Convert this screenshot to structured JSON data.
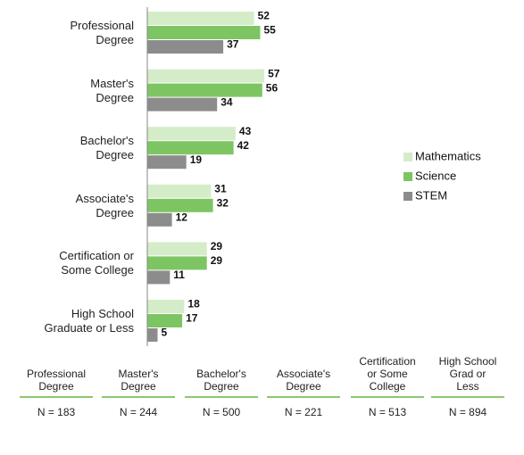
{
  "chart_data": {
    "type": "bar",
    "orientation": "horizontal",
    "categories": [
      "Professional\nDegree",
      "Master's\nDegree",
      "Bachelor's\nDegree",
      "Associate's\nDegree",
      "Certification or\nSome College",
      "High School\nGraduate or Less"
    ],
    "series": [
      {
        "name": "Mathematics",
        "color": "#d5ecc9",
        "values": [
          52,
          57,
          43,
          31,
          29,
          18
        ]
      },
      {
        "name": "Science",
        "color": "#7dc563",
        "values": [
          55,
          56,
          42,
          32,
          29,
          17
        ]
      },
      {
        "name": "STEM",
        "color": "#8c8c8c",
        "values": [
          37,
          34,
          19,
          12,
          11,
          5
        ]
      }
    ],
    "xlim": [
      0,
      60
    ],
    "legend": "right"
  },
  "table": {
    "headers": [
      "Professional\nDegree",
      "Master's\nDegree",
      "Bachelor's\nDegree",
      "Associate's\nDegree",
      "Certification\nor Some\nCollege",
      "High School\nGrad or\nLess"
    ],
    "cells": [
      "N = 183",
      "N = 244",
      "N = 500",
      "N = 221",
      "N = 513",
      "N = 894"
    ]
  }
}
